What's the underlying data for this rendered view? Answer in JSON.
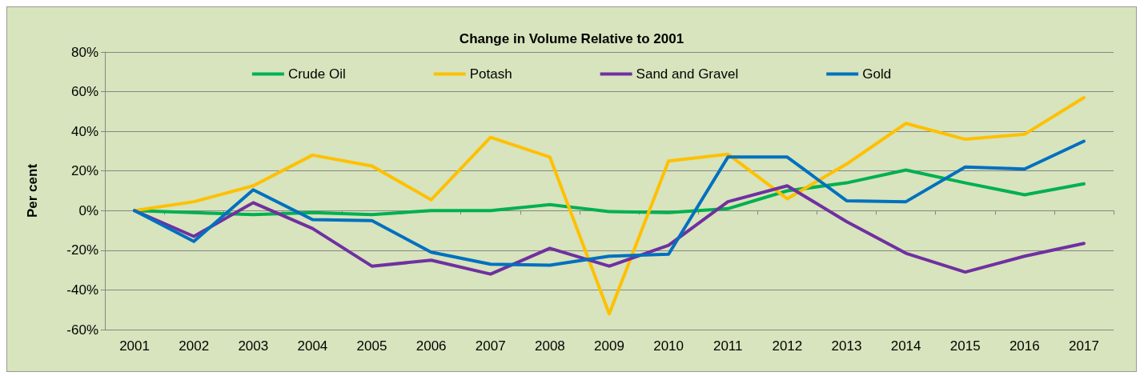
{
  "chart_data": {
    "type": "line",
    "title": "Change in Volume Relative to 2001",
    "ylabel": "Per cent",
    "categories": [
      "2001",
      "2002",
      "2003",
      "2004",
      "2005",
      "2006",
      "2007",
      "2008",
      "2009",
      "2010",
      "2011",
      "2012",
      "2013",
      "2014",
      "2015",
      "2016",
      "2017"
    ],
    "series": [
      {
        "name": "Crude Oil",
        "color": "#00b050",
        "values": [
          0,
          -1,
          -2,
          -1,
          -2,
          0,
          0,
          3,
          -0.5,
          -1,
          1,
          10,
          14,
          20.5,
          14,
          8,
          13.5
        ]
      },
      {
        "name": "Potash",
        "color": "#ffc000",
        "values": [
          0,
          4.5,
          12.5,
          28,
          22.5,
          5.5,
          37,
          27,
          -52,
          25,
          28.5,
          6,
          23.5,
          44,
          36,
          38.5,
          57
        ]
      },
      {
        "name": "Sand and Gravel",
        "color": "#7030a0",
        "values": [
          0,
          -13,
          4,
          -9,
          -28,
          -25,
          -32,
          -19,
          -28,
          -17.5,
          4.5,
          12.5,
          -5.5,
          -21.5,
          -31,
          -23,
          -16.5
        ]
      },
      {
        "name": "Gold",
        "color": "#0070c0",
        "values": [
          0,
          -15.5,
          10.5,
          -4.5,
          -5,
          -21,
          -27,
          -27.5,
          -23,
          -22,
          27,
          27,
          5,
          4.5,
          22,
          21,
          35
        ]
      }
    ],
    "ylim": [
      -60,
      80
    ],
    "yticks": [
      {
        "value": -60,
        "label": "-60%"
      },
      {
        "value": -40,
        "label": "-40%"
      },
      {
        "value": -20,
        "label": "-20%"
      },
      {
        "value": 0,
        "label": "0%"
      },
      {
        "value": 20,
        "label": "20%"
      },
      {
        "value": 40,
        "label": "40%"
      },
      {
        "value": 60,
        "label": "60%"
      },
      {
        "value": 80,
        "label": "80%"
      }
    ],
    "grid": "y",
    "legend": "top",
    "marker": "none",
    "line_style": "solid"
  }
}
